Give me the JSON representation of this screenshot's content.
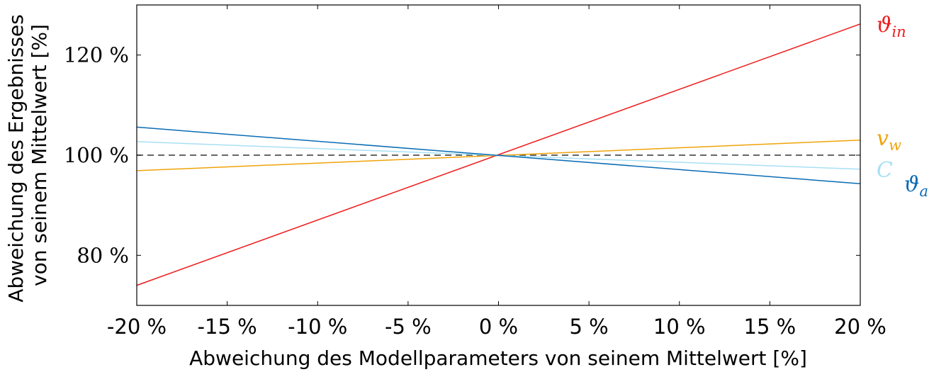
{
  "chart_data": {
    "type": "line",
    "xlabel": "Abweichung des Modellparameters von seinem Mittelwert [%]",
    "ylabel_lines": [
      "Abweichung des Ergebnisses",
      "von seinem Mittelwert [%]"
    ],
    "x_ticks": [
      -20,
      -15,
      -10,
      -5,
      0,
      5,
      10,
      15,
      20
    ],
    "x_tick_labels": [
      "-20 %",
      "-15 %",
      "-10 %",
      "-5 %",
      "0 %",
      "5 %",
      "10 %",
      "15 %",
      "20 %"
    ],
    "y_ticks": [
      80,
      100,
      120
    ],
    "y_tick_labels": [
      "80 %",
      "100 %",
      "120 %"
    ],
    "xlim": [
      -20,
      20
    ],
    "ylim": [
      70,
      130
    ],
    "grid": false,
    "legend": "inline labels at right end of lines",
    "reference_line": {
      "y": 100,
      "style": "dashed",
      "color": "#333333"
    },
    "series": [
      {
        "name": "ϑ_in",
        "label_main": "ϑ",
        "label_sub": "in",
        "color": "#ee1c1c",
        "x": [
          -20,
          20
        ],
        "y": [
          74.0,
          126.2
        ]
      },
      {
        "name": "v_w",
        "label_main": "v",
        "label_sub": "w",
        "color": "#f0a30a",
        "x": [
          -20,
          20
        ],
        "y": [
          96.9,
          103.0
        ]
      },
      {
        "name": "C",
        "label_main": "C",
        "label_sub": "",
        "color": "#a8e0f4",
        "x": [
          -20,
          20
        ],
        "y": [
          102.7,
          97.2
        ]
      },
      {
        "name": "ϑ_a",
        "label_main": "ϑ",
        "label_sub": "a",
        "color": "#0a6cb4",
        "x": [
          -20,
          20
        ],
        "y": [
          105.6,
          94.3
        ]
      }
    ]
  }
}
